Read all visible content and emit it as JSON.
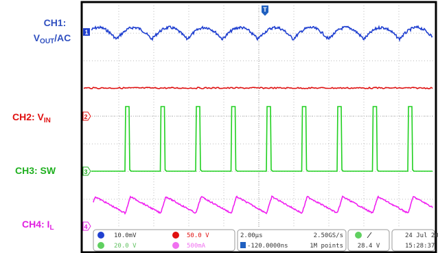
{
  "labels": {
    "ch1": {
      "name": "CH1:",
      "signal": "V",
      "subscript": "OUT",
      "suffix": "/AC"
    },
    "ch2": {
      "name": "CH2: V",
      "subscript": "IN"
    },
    "ch3": {
      "name": "CH3: SW"
    },
    "ch4": {
      "name": "CH4: I",
      "subscript": "L"
    }
  },
  "markers": {
    "channels": [
      "1",
      "2",
      "3",
      "4"
    ],
    "trigger": "T"
  },
  "status": {
    "ch1_scale": "10.0mV",
    "ch2_scale": "50.0 V",
    "ch3_scale": "20.0 V",
    "ch4_scale": "500mA",
    "timebase": "2.00µs",
    "sample_rate": "2.50GS/s",
    "trigger_delay": "-120.0000ns",
    "record_length": "1M points",
    "trigger_level": "28.4 V",
    "date": "24 Jul 20",
    "time": "15:28:37"
  }
}
